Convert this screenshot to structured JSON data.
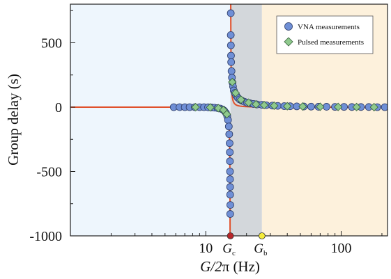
{
  "chart_data": {
    "type": "scatter",
    "xlabel_main": "G/2",
    "xlabel_pi": "π",
    "xlabel_unit": " (Hz)",
    "ylabel": "Group delay (s)",
    "x_scale": "log",
    "xlim": [
      1,
      220
    ],
    "ylim": [
      -1000,
      800
    ],
    "x_ticks": [
      {
        "value": 10,
        "label": "10"
      },
      {
        "value": 100,
        "label": "100"
      }
    ],
    "y_ticks": [
      {
        "value": 500,
        "label": "500"
      },
      {
        "value": 0,
        "label": "0"
      },
      {
        "value": -500,
        "label": "-500"
      },
      {
        "value": -1000,
        "label": "-1000"
      }
    ],
    "regions": [
      {
        "from": 1,
        "to": 15.2,
        "color": "#eef6fd"
      },
      {
        "from": 15.2,
        "to": 26,
        "color": "#d3d7db"
      },
      {
        "from": 26,
        "to": 220,
        "color": "#fdf1dc"
      }
    ],
    "markers": [
      {
        "name": "Gc",
        "base": "G",
        "sub": "c",
        "value": 15.2,
        "color": "#b8262a"
      },
      {
        "name": "Gb",
        "base": "G",
        "sub": "b",
        "value": 26,
        "color": "#f5ec3a"
      }
    ],
    "fit": {
      "color": "#e0502b",
      "pole": 15.2
    },
    "series": [
      {
        "name": "VNA measurements",
        "color": "#6f8fd6",
        "points": [
          [
            5.8,
            0
          ],
          [
            6.4,
            0
          ],
          [
            7.0,
            0
          ],
          [
            7.6,
            0
          ],
          [
            8.3,
            0
          ],
          [
            9.0,
            0
          ],
          [
            9.7,
            0
          ],
          [
            10.4,
            -1
          ],
          [
            11.0,
            -2
          ],
          [
            11.6,
            -4
          ],
          [
            12.2,
            -7
          ],
          [
            12.8,
            -11
          ],
          [
            13.3,
            -18
          ],
          [
            13.7,
            -28
          ],
          [
            14.1,
            -45
          ],
          [
            14.4,
            -70
          ],
          [
            14.6,
            -100
          ],
          [
            14.8,
            -150
          ],
          [
            14.9,
            -210
          ],
          [
            15.0,
            -280
          ],
          [
            15.05,
            -350
          ],
          [
            15.08,
            -420
          ],
          [
            15.1,
            -500
          ],
          [
            15.12,
            -560
          ],
          [
            15.13,
            -620
          ],
          [
            15.14,
            -680
          ],
          [
            15.15,
            -830
          ],
          [
            15.18,
            -760
          ],
          [
            15.3,
            560
          ],
          [
            15.33,
            480
          ],
          [
            15.36,
            400
          ],
          [
            15.4,
            350
          ],
          [
            15.5,
            280
          ],
          [
            15.6,
            230
          ],
          [
            15.75,
            190
          ],
          [
            15.9,
            160
          ],
          [
            16.1,
            130
          ],
          [
            16.4,
            110
          ],
          [
            16.8,
            90
          ],
          [
            17.2,
            75
          ],
          [
            17.8,
            60
          ],
          [
            18.5,
            50
          ],
          [
            19.3,
            42
          ],
          [
            20.2,
            35
          ],
          [
            21.2,
            30
          ],
          [
            22.5,
            25
          ],
          [
            24,
            21
          ],
          [
            26,
            18
          ],
          [
            28,
            15
          ],
          [
            31,
            12
          ],
          [
            34,
            10
          ],
          [
            38,
            8
          ],
          [
            42,
            7
          ],
          [
            47,
            6
          ],
          [
            53,
            5
          ],
          [
            60,
            4
          ],
          [
            68,
            3
          ],
          [
            78,
            3
          ],
          [
            90,
            2
          ],
          [
            105,
            2
          ],
          [
            120,
            1
          ],
          [
            140,
            1
          ],
          [
            160,
            1
          ],
          [
            185,
            0
          ],
          [
            210,
            0
          ],
          [
            15.3,
            730
          ]
        ]
      },
      {
        "name": "Pulsed measurements",
        "color": "#8fc98d",
        "points": [
          [
            8.4,
            0
          ],
          [
            10.8,
            -2
          ],
          [
            12.4,
            -8
          ],
          [
            13.5,
            -22
          ],
          [
            14.3,
            -55
          ],
          [
            15.7,
            195
          ],
          [
            16.6,
            110
          ],
          [
            18.2,
            58
          ],
          [
            20.7,
            35
          ],
          [
            23.5,
            22
          ],
          [
            27,
            16
          ],
          [
            32,
            11
          ],
          [
            40,
            7
          ],
          [
            52,
            5
          ],
          [
            70,
            3
          ],
          [
            95,
            2
          ],
          [
            130,
            1
          ],
          [
            175,
            0
          ]
        ]
      }
    ],
    "legend": {
      "position": "top-right"
    }
  }
}
